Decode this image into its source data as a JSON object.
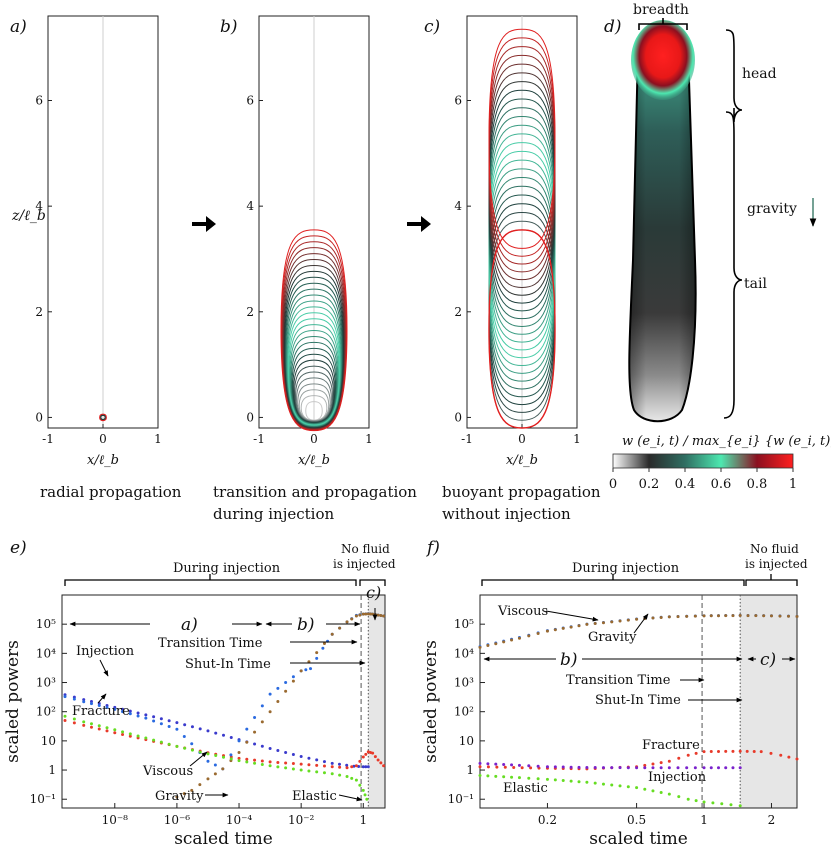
{
  "colors": {
    "injection": "#3a3acc",
    "fracture": "#e83a2a",
    "viscous": "#2a6ae0",
    "gravity": "#9a6a30",
    "elastic": "#66dd22",
    "shut_in_shade": "#e6e6e6",
    "arrow": "#000000",
    "contour_dark": "#1c3a38",
    "contour_teal": "#4dd8b0",
    "contour_red": "#e02020"
  },
  "chart_data": [
    {
      "panel": "a)",
      "type": "line",
      "title": "",
      "xlabel": "x/ℓ_b",
      "ylabel": "z/ℓ_b",
      "xlim": [
        -1,
        1
      ],
      "ylim": [
        -0.2,
        7.6
      ],
      "x_ticks": [
        "-1",
        "0",
        "1"
      ],
      "y_ticks": [
        "0",
        "2",
        "4",
        "6"
      ],
      "caption": "radial propagation",
      "fronts": [
        {
          "z_bottom": -0.06,
          "z_top": 0.06,
          "half_width": 0.06,
          "color": "#e02020"
        },
        {
          "z_bottom": -0.04,
          "z_top": 0.04,
          "half_width": 0.04,
          "color": "#1c3a38"
        }
      ]
    },
    {
      "panel": "b)",
      "type": "line",
      "xlabel": "x/ℓ_b",
      "xlim": [
        -1,
        1
      ],
      "ylim": [
        -0.2,
        7.6
      ],
      "x_ticks": [
        "-1",
        "0",
        "1"
      ],
      "y_ticks": [
        "0",
        "2",
        "4",
        "6"
      ],
      "caption_lines": [
        "transition and propagation",
        "during injection"
      ],
      "fronts_summary": {
        "count": 30,
        "z_bottom_range": [
          -0.25,
          -0.05
        ],
        "z_top_range": [
          0.3,
          3.55
        ],
        "half_width_range": [
          0.15,
          0.6
        ]
      }
    },
    {
      "panel": "c)",
      "type": "line",
      "xlabel": "x/ℓ_b",
      "xlim": [
        -1,
        1
      ],
      "ylim": [
        -0.2,
        7.6
      ],
      "x_ticks": [
        "-1",
        "0",
        "1"
      ],
      "y_ticks": [
        "0",
        "2",
        "4",
        "6"
      ],
      "caption_lines": [
        "buoyant propagation",
        "without injection"
      ],
      "fronts_summary": {
        "count": 24,
        "z_bottom_range": [
          -0.2,
          3.2
        ],
        "z_top_range": [
          3.55,
          7.35
        ],
        "half_width": 0.6
      }
    },
    {
      "panel": "d)",
      "type": "heatmap",
      "labels": {
        "breadth": "breadth",
        "head": "head",
        "tail": "tail",
        "gravity": "gravity"
      },
      "colorbar": {
        "label": "w (e_i, t) / max_{e_i} {w (e_i, t)}",
        "ticks": [
          "0",
          "0.2",
          "0.4",
          "0.6",
          "0.8",
          "1"
        ],
        "stops": [
          "#ffffff",
          "#2a2a2a",
          "#2f6e62",
          "#4de8b0",
          "#8b1020",
          "#ff2020"
        ]
      }
    },
    {
      "panel": "e)",
      "type": "scatter",
      "xscale": "log",
      "yscale": "log",
      "xlabel": "scaled time",
      "ylabel": "scaled powers",
      "xlim": [
        2e-10,
        5
      ],
      "ylim": [
        0.05,
        1000000
      ],
      "x_ticks": [
        {
          "v": 1e-08,
          "label": "10⁻⁸"
        },
        {
          "v": 1e-06,
          "label": "10⁻⁶"
        },
        {
          "v": 0.0001,
          "label": "10⁻⁴"
        },
        {
          "v": 0.01,
          "label": "10⁻²"
        },
        {
          "v": 1,
          "label": "1"
        }
      ],
      "y_ticks": [
        {
          "v": 0.1,
          "label": "10⁻¹"
        },
        {
          "v": 1,
          "label": "1"
        },
        {
          "v": 10,
          "label": "10"
        },
        {
          "v": 100,
          "label": "10²"
        },
        {
          "v": 1000,
          "label": "10³"
        },
        {
          "v": 10000,
          "label": "10⁴"
        },
        {
          "v": 100000,
          "label": "10⁵"
        }
      ],
      "transition_time": 0.85,
      "shut_in_time": 1.45,
      "shaded_from": 1.45,
      "shaded_to": 5,
      "annotations": {
        "during_injection": "During injection",
        "no_fluid_1": "No fluid",
        "no_fluid_2": "is injected",
        "regime_a": "a)",
        "regime_b": "b)",
        "regime_c": "c)",
        "transition_time": "Transition Time",
        "shut_in_time": "Shut-In Time",
        "injection": "Injection",
        "fracture": "Fracture",
        "viscous": "Viscous",
        "gravity": "Gravity",
        "elastic": "Elastic"
      },
      "series": [
        {
          "name": "Injection",
          "color": "#3a3acc",
          "x": [
            2.5e-10,
            1e-09,
            1e-08,
            1e-07,
            1e-06,
            1e-05,
            0.0001,
            0.001,
            0.01,
            0.1,
            0.5,
            1,
            1.45
          ],
          "y": [
            380,
            260,
            140,
            78,
            42,
            22,
            11,
            5.5,
            2.9,
            1.7,
            1.35,
            1.3,
            1.3
          ]
        },
        {
          "name": "Fracture",
          "color": "#e83a2a",
          "x": [
            2.5e-10,
            1e-09,
            1e-08,
            1e-07,
            1e-06,
            1e-05,
            0.0001,
            0.001,
            0.01,
            0.1,
            0.3,
            0.6,
            1,
            1.45,
            2,
            3,
            4.5
          ],
          "y": [
            50,
            34,
            19,
            11,
            6.5,
            3.9,
            2.5,
            1.9,
            1.6,
            1.3,
            1.2,
            1.4,
            2.8,
            4.2,
            3.8,
            2.2,
            1.4
          ]
        },
        {
          "name": "Viscous",
          "color": "#2a6ae0",
          "x": [
            2.5e-10,
            1e-09,
            1e-08,
            1e-07,
            1e-06,
            3e-06,
            1e-05,
            3e-05,
            0.0001,
            0.001,
            0.01,
            0.02,
            0.05,
            0.1,
            0.3,
            0.6,
            1,
            1.45,
            2,
            3,
            4.5
          ],
          "y": [
            330,
            220,
            120,
            60,
            25,
            8,
            2,
            1.1,
            10,
            400,
            2500,
            3000,
            15000,
            45000,
            120000,
            200000,
            220000,
            230000,
            220000,
            205000,
            190000
          ]
        },
        {
          "name": "Gravity",
          "color": "#9a6a30",
          "x": [
            1e-06,
            3e-06,
            1e-05,
            3e-05,
            0.0001,
            0.001,
            0.01,
            0.1,
            0.3,
            0.6,
            1,
            1.45,
            2,
            3,
            4.5
          ],
          "y": [
            0.12,
            0.2,
            0.5,
            1.1,
            4,
            100,
            2500,
            45000,
            120000,
            190000,
            220000,
            225000,
            220000,
            205000,
            190000
          ]
        },
        {
          "name": "Elastic",
          "color": "#66dd22",
          "x": [
            2.5e-10,
            1e-09,
            1e-08,
            1e-07,
            1e-06,
            1e-05,
            0.0001,
            0.001,
            0.01,
            0.1,
            0.3,
            0.6,
            1,
            1.3
          ],
          "y": [
            70,
            45,
            24,
            12.5,
            6.5,
            3.6,
            2.1,
            1.4,
            1.0,
            0.75,
            0.6,
            0.45,
            0.2,
            0.1
          ]
        }
      ]
    },
    {
      "panel": "f)",
      "type": "scatter",
      "xscale": "log",
      "yscale": "log",
      "xlabel": "scaled time",
      "ylabel": "scaled powers",
      "xlim": [
        0.1,
        2.6
      ],
      "ylim": [
        0.05,
        1000000
      ],
      "x_ticks": [
        {
          "v": 0.2,
          "label": "0.2"
        },
        {
          "v": 0.5,
          "label": "0.5"
        },
        {
          "v": 1,
          "label": "1"
        },
        {
          "v": 2,
          "label": "2"
        }
      ],
      "y_ticks": [
        {
          "v": 0.1,
          "label": "10⁻¹"
        },
        {
          "v": 1,
          "label": "1"
        },
        {
          "v": 10,
          "label": "10"
        },
        {
          "v": 100,
          "label": "10²"
        },
        {
          "v": 1000,
          "label": "10³"
        },
        {
          "v": 10000,
          "label": "10⁴"
        },
        {
          "v": 100000,
          "label": "10⁵"
        }
      ],
      "transition_time": 0.98,
      "shut_in_time": 1.45,
      "shaded_from": 1.45,
      "shaded_to": 2.6,
      "annotations": {
        "during_injection": "During injection",
        "no_fluid_1": "No fluid",
        "no_fluid_2": "is injected",
        "regime_b": "b)",
        "regime_c": "c)",
        "transition_time": "Transition Time",
        "shut_in_time": "Shut-In Time",
        "viscous": "Viscous",
        "gravity": "Gravity",
        "fracture": "Fracture",
        "injection": "Injection",
        "elastic": "Elastic"
      },
      "series": [
        {
          "name": "Viscous",
          "color": "#2a6ae0",
          "x": [
            0.1,
            0.15,
            0.2,
            0.3,
            0.5,
            0.7,
            1,
            1.45,
            2,
            2.6
          ],
          "y": [
            17000,
            35000,
            60000,
            100000,
            150000,
            180000,
            195000,
            200000,
            195000,
            185000
          ]
        },
        {
          "name": "Gravity",
          "color": "#9a6a30",
          "x": [
            0.1,
            0.15,
            0.2,
            0.3,
            0.5,
            0.7,
            1,
            1.45,
            2,
            2.6
          ],
          "y": [
            16000,
            33000,
            58000,
            98000,
            148000,
            178000,
            193000,
            198000,
            193000,
            183000
          ]
        },
        {
          "name": "Fracture",
          "color": "#e83a2a",
          "x": [
            0.1,
            0.2,
            0.3,
            0.5,
            0.7,
            0.85,
            1,
            1.45,
            1.8,
            2.2,
            2.6
          ],
          "y": [
            1.3,
            1.15,
            1.1,
            1.3,
            2.0,
            3.2,
            4.3,
            4.4,
            4.3,
            3.2,
            2.4
          ]
        },
        {
          "name": "Injection",
          "color": "#7a22cc",
          "x": [
            0.1,
            0.15,
            0.2,
            0.3,
            0.5,
            0.7,
            1,
            1.45
          ],
          "y": [
            1.7,
            1.45,
            1.3,
            1.22,
            1.2,
            1.2,
            1.2,
            1.2
          ]
        },
        {
          "name": "Elastic",
          "color": "#66dd22",
          "x": [
            0.1,
            0.15,
            0.2,
            0.3,
            0.5,
            0.7,
            0.85,
            1,
            1.2,
            1.45
          ],
          "y": [
            0.65,
            0.55,
            0.48,
            0.38,
            0.25,
            0.15,
            0.1,
            0.08,
            0.07,
            0.06
          ]
        }
      ]
    }
  ]
}
